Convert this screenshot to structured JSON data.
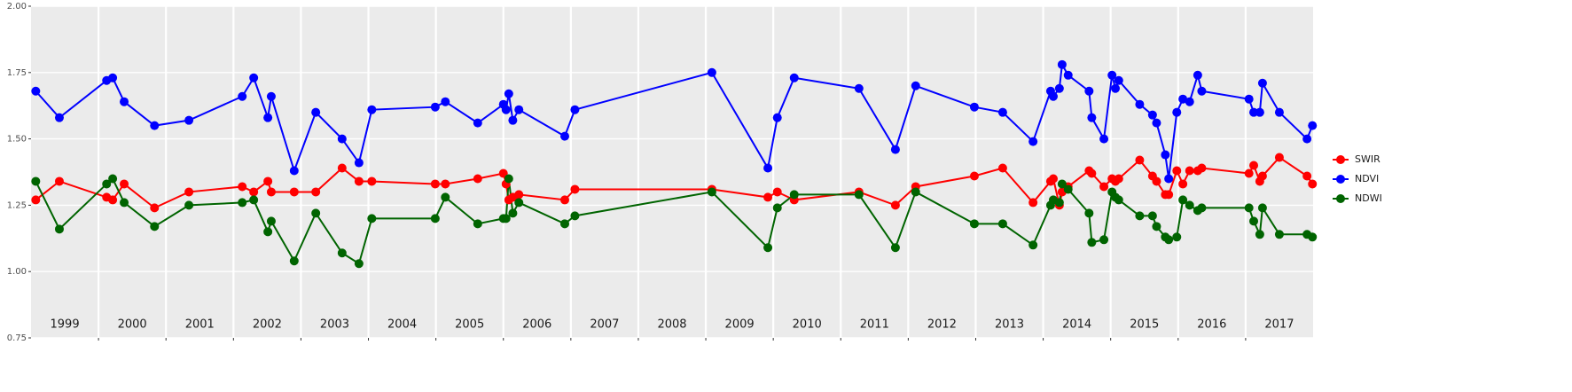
{
  "chart_data": {
    "type": "line",
    "x_labels": [
      1999,
      2000,
      2001,
      2002,
      2003,
      2004,
      2005,
      2006,
      2007,
      2008,
      2009,
      2010,
      2011,
      2012,
      2013,
      2014,
      2015,
      2016,
      2017
    ],
    "x": [
      1999.07,
      1999.42,
      2000.12,
      2000.21,
      2000.38,
      2000.83,
      2001.34,
      2002.13,
      2002.3,
      2002.51,
      2002.56,
      2002.9,
      2003.22,
      2003.61,
      2003.86,
      2004.05,
      2004.99,
      2005.14,
      2005.62,
      2006.0,
      2006.04,
      2006.08,
      2006.14,
      2006.23,
      2006.91,
      2007.06,
      2009.09,
      2009.92,
      2010.06,
      2010.31,
      2011.27,
      2011.81,
      2012.11,
      2012.98,
      2013.4,
      2013.85,
      2014.11,
      2014.15,
      2014.24,
      2014.28,
      2014.37,
      2014.68,
      2014.72,
      2014.9,
      2015.02,
      2015.07,
      2015.12,
      2015.43,
      2015.62,
      2015.68,
      2015.81,
      2015.86,
      2015.98,
      2016.07,
      2016.17,
      2016.29,
      2016.35,
      2017.05,
      2017.12,
      2017.21,
      2017.25,
      2017.5,
      2017.91,
      2017.99
    ],
    "series": [
      {
        "name": "SWIR",
        "color": "#ff0000",
        "values": [
          1.27,
          1.34,
          1.28,
          1.27,
          1.33,
          1.24,
          1.3,
          1.32,
          1.3,
          1.34,
          1.3,
          1.3,
          1.3,
          1.39,
          1.34,
          1.34,
          1.33,
          1.33,
          1.35,
          1.37,
          1.33,
          1.27,
          1.28,
          1.29,
          1.27,
          1.31,
          1.31,
          1.28,
          1.3,
          1.27,
          1.3,
          1.25,
          1.32,
          1.36,
          1.39,
          1.26,
          1.34,
          1.35,
          1.25,
          1.3,
          1.32,
          1.38,
          1.37,
          1.32,
          1.35,
          1.34,
          1.35,
          1.42,
          1.36,
          1.34,
          1.29,
          1.29,
          1.38,
          1.33,
          1.38,
          1.38,
          1.39,
          1.37,
          1.4,
          1.34,
          1.36,
          1.43,
          1.36,
          1.33
        ]
      },
      {
        "name": "NDVI",
        "color": "#0000ff",
        "values": [
          1.68,
          1.58,
          1.72,
          1.73,
          1.64,
          1.55,
          1.57,
          1.66,
          1.73,
          1.58,
          1.66,
          1.38,
          1.6,
          1.5,
          1.41,
          1.61,
          1.62,
          1.64,
          1.56,
          1.63,
          1.61,
          1.67,
          1.57,
          1.61,
          1.51,
          1.61,
          1.75,
          1.39,
          1.58,
          1.73,
          1.69,
          1.46,
          1.7,
          1.62,
          1.6,
          1.49,
          1.68,
          1.66,
          1.69,
          1.78,
          1.74,
          1.68,
          1.58,
          1.5,
          1.74,
          1.69,
          1.72,
          1.63,
          1.59,
          1.56,
          1.44,
          1.35,
          1.6,
          1.65,
          1.64,
          1.74,
          1.68,
          1.65,
          1.6,
          1.6,
          1.71,
          1.6,
          1.5,
          1.55
        ]
      },
      {
        "name": "NDWI",
        "color": "#006400",
        "values": [
          1.34,
          1.16,
          1.33,
          1.35,
          1.26,
          1.17,
          1.25,
          1.26,
          1.27,
          1.15,
          1.19,
          1.04,
          1.22,
          1.07,
          1.03,
          1.2,
          1.2,
          1.28,
          1.18,
          1.2,
          1.2,
          1.35,
          1.22,
          1.26,
          1.18,
          1.21,
          1.3,
          1.09,
          1.24,
          1.29,
          1.29,
          1.09,
          1.3,
          1.18,
          1.18,
          1.1,
          1.25,
          1.27,
          1.26,
          1.33,
          1.31,
          1.22,
          1.11,
          1.12,
          1.3,
          1.28,
          1.27,
          1.21,
          1.21,
          1.17,
          1.13,
          1.12,
          1.13,
          1.27,
          1.25,
          1.23,
          1.24,
          1.24,
          1.19,
          1.14,
          1.24,
          1.14,
          1.14,
          1.13
        ]
      }
    ],
    "xlim": [
      1999,
      2018
    ],
    "xticks": [
      2000,
      2001,
      2002,
      2003,
      2004,
      2005,
      2006,
      2007,
      2008,
      2009,
      2010,
      2011,
      2012,
      2013,
      2014,
      2015,
      2016,
      2017
    ],
    "ylim": [
      0.75,
      2.0
    ],
    "yticks": [
      {
        "value": 0.75,
        "label": "0.75"
      },
      {
        "value": 1.0,
        "label": "1.00"
      },
      {
        "value": 1.25,
        "label": "1.25"
      },
      {
        "value": 1.5,
        "label": "1.50"
      },
      {
        "value": 1.75,
        "label": "1.75"
      },
      {
        "value": 2.0,
        "label": "2.00"
      }
    ],
    "grid": true,
    "legend": "right"
  }
}
